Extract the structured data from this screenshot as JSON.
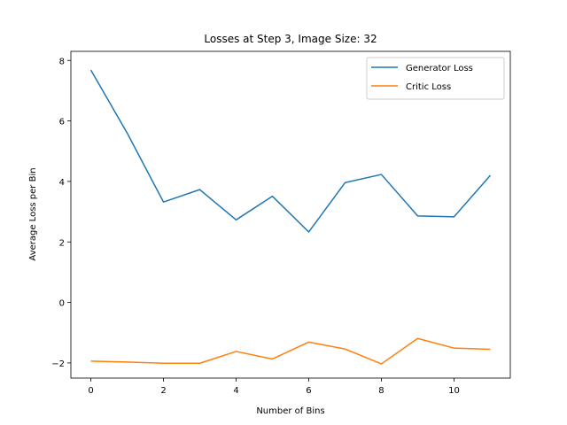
{
  "chart_data": {
    "type": "line",
    "title": "Losses at Step 3, Image Size: 32",
    "xlabel": "Number of Bins",
    "ylabel": "Average Loss per Bin",
    "x": [
      0,
      1,
      2,
      3,
      4,
      5,
      6,
      7,
      8,
      9,
      10,
      11
    ],
    "xlim": [
      -0.55,
      11.55
    ],
    "ylim": [
      -2.5,
      8.3
    ],
    "xticks": [
      0,
      2,
      4,
      6,
      8,
      10
    ],
    "yticks": [
      -2,
      0,
      2,
      4,
      6,
      8
    ],
    "xtick_labels": [
      "0",
      "2",
      "4",
      "6",
      "8",
      "10"
    ],
    "ytick_labels": [
      "−2",
      "0",
      "2",
      "4",
      "6",
      "8"
    ],
    "grid": false,
    "legend_position": "top-right",
    "series": [
      {
        "name": "Generator Loss",
        "color": "#1f77b4",
        "values": [
          7.68,
          5.6,
          3.32,
          3.73,
          2.73,
          3.51,
          2.33,
          3.96,
          4.23,
          2.86,
          2.83,
          4.2
        ]
      },
      {
        "name": "Critic Loss",
        "color": "#ff7f0e",
        "values": [
          -1.94,
          -1.97,
          -2.01,
          -2.01,
          -1.62,
          -1.87,
          -1.31,
          -1.54,
          -2.03,
          -1.19,
          -1.51,
          -1.55
        ]
      }
    ]
  }
}
